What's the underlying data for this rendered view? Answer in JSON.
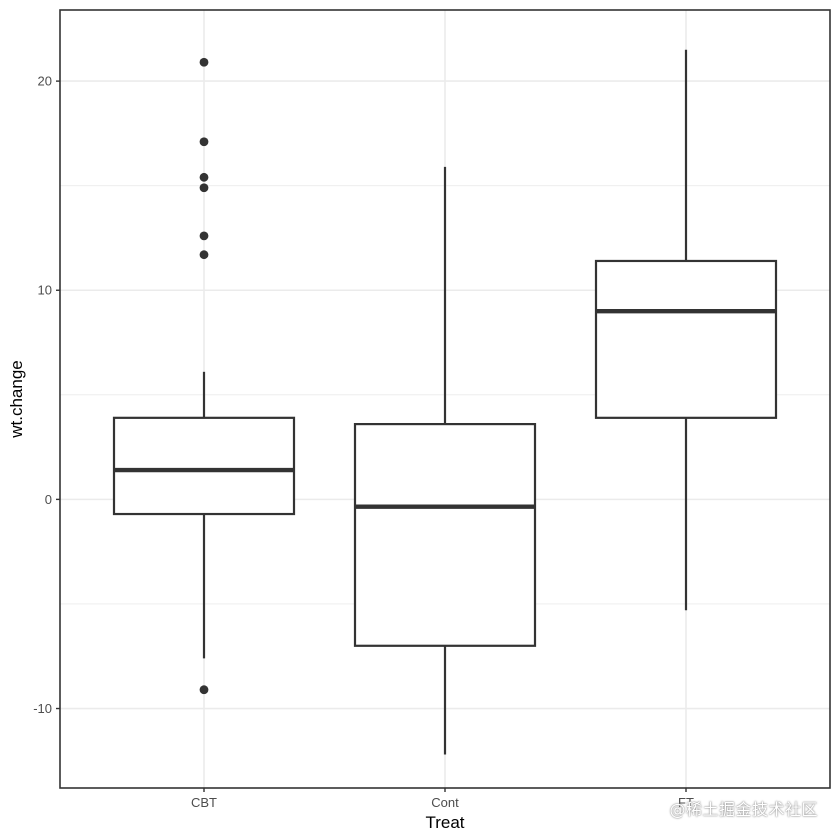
{
  "chart_data": {
    "type": "boxplot",
    "xlabel": "Treat",
    "ylabel": "wt.change",
    "categories": [
      "CBT",
      "Cont",
      "FT"
    ],
    "ylim": [
      -13.8,
      23.4
    ],
    "yticks": [
      -10,
      0,
      10,
      20
    ],
    "ytick_labels": [
      "-10",
      "0",
      "10",
      "20"
    ],
    "grid": true,
    "theme": "bw",
    "colors": {
      "box_stroke": "#333333",
      "grid": "#ebebeb",
      "panel_border": "#333333",
      "outlier": "#333333"
    },
    "boxes": [
      {
        "category": "CBT",
        "lower_whisker": -7.6,
        "q1": -0.7,
        "median": 1.4,
        "q3": 3.9,
        "upper_whisker": 6.1,
        "outliers": [
          20.9,
          17.1,
          15.4,
          14.9,
          12.6,
          11.7,
          -9.1
        ]
      },
      {
        "category": "Cont",
        "lower_whisker": -12.2,
        "q1": -7.0,
        "median": -0.35,
        "q3": 3.6,
        "upper_whisker": 15.9,
        "outliers": []
      },
      {
        "category": "FT",
        "lower_whisker": -5.3,
        "q1": 3.9,
        "median": 9.0,
        "q3": 11.4,
        "upper_whisker": 21.5,
        "outliers": []
      }
    ]
  },
  "watermark": "@稀土掘金技术社区"
}
